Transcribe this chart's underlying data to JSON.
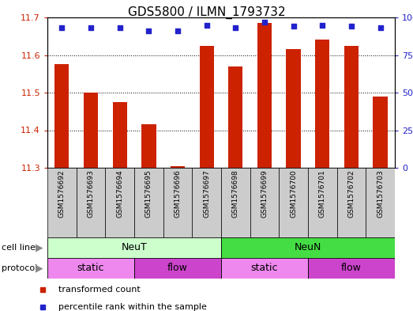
{
  "title": "GDS5800 / ILMN_1793732",
  "samples": [
    "GSM1576692",
    "GSM1576693",
    "GSM1576694",
    "GSM1576695",
    "GSM1576696",
    "GSM1576697",
    "GSM1576698",
    "GSM1576699",
    "GSM1576700",
    "GSM1576701",
    "GSM1576702",
    "GSM1576703"
  ],
  "bar_values": [
    11.575,
    11.5,
    11.475,
    11.415,
    11.305,
    11.625,
    11.57,
    11.685,
    11.615,
    11.64,
    11.625,
    11.49
  ],
  "percentile_values": [
    93,
    93,
    93,
    91,
    91,
    95,
    93,
    97,
    94,
    95,
    94,
    93
  ],
  "ylim": [
    11.3,
    11.7
  ],
  "yticks_left": [
    11.3,
    11.4,
    11.5,
    11.6,
    11.7
  ],
  "yticks_right": [
    0,
    25,
    50,
    75,
    100
  ],
  "bar_color": "#cc2200",
  "dot_color": "#2222cc",
  "cell_line_groups": [
    {
      "label": "NeuT",
      "start": 0,
      "end": 6,
      "color": "#ccffcc"
    },
    {
      "label": "NeuN",
      "start": 6,
      "end": 12,
      "color": "#44dd44"
    }
  ],
  "protocol_groups": [
    {
      "label": "static",
      "start": 0,
      "end": 3,
      "color": "#ee88ee"
    },
    {
      "label": "flow",
      "start": 3,
      "end": 6,
      "color": "#cc44cc"
    },
    {
      "label": "static",
      "start": 6,
      "end": 9,
      "color": "#ee88ee"
    },
    {
      "label": "flow",
      "start": 9,
      "end": 12,
      "color": "#cc44cc"
    }
  ],
  "legend_items": [
    {
      "label": "transformed count",
      "color": "#cc2200"
    },
    {
      "label": "percentile rank within the sample",
      "color": "#2222cc"
    }
  ],
  "bg_color": "#ffffff",
  "sample_bg_color": "#cccccc",
  "bar_width": 0.5,
  "title_fontsize": 11,
  "tick_fontsize": 8,
  "label_fontsize": 9,
  "arrow_color": "#888888"
}
